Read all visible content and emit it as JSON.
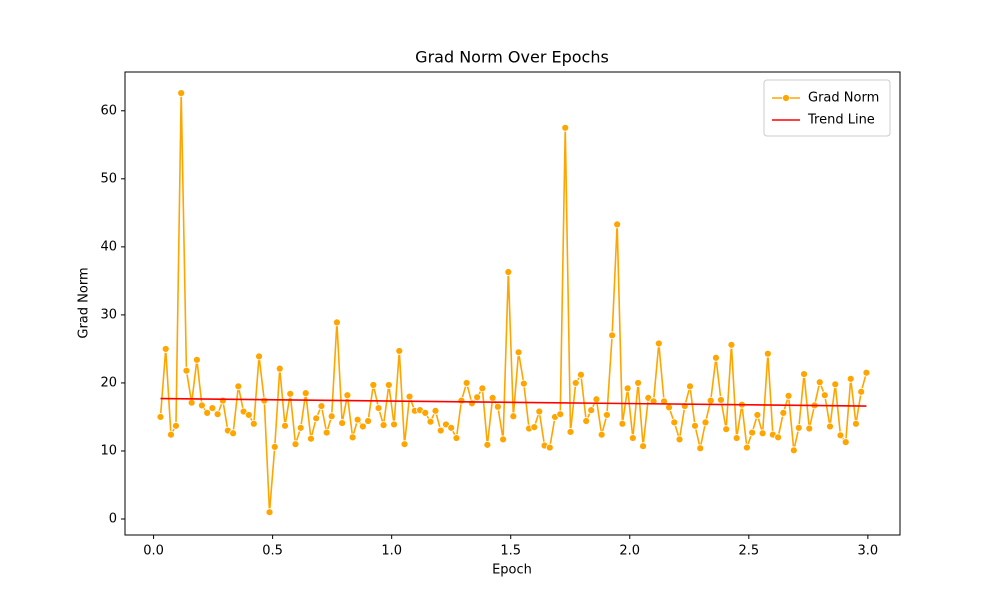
{
  "chart_data": {
    "type": "line",
    "title": "Grad Norm Over Epochs",
    "x_label": "Epoch",
    "y_label": "Grad Norm",
    "xlim": [
      -0.12,
      3.135
    ],
    "ylim": [
      -2.35,
      65.7
    ],
    "xticks": [
      {
        "value": 0,
        "label": "0.0"
      },
      0.5,
      {
        "value": 1,
        "label": "1.0"
      },
      1.5,
      {
        "value": 2,
        "label": "2.0"
      },
      2.5,
      {
        "value": 3,
        "label": "3.0"
      }
    ],
    "yticks": [
      0,
      10,
      20,
      30,
      40,
      50,
      60
    ],
    "grid": false,
    "legend": "upper right",
    "series": [
      {
        "name": "Grad Norm",
        "color": "#ffa500",
        "marker": true,
        "x": [
          0.029,
          0.051,
          0.073,
          0.094,
          0.116,
          0.138,
          0.16,
          0.182,
          0.203,
          0.225,
          0.247,
          0.269,
          0.291,
          0.312,
          0.334,
          0.356,
          0.378,
          0.4,
          0.421,
          0.443,
          0.465,
          0.487,
          0.509,
          0.53,
          0.552,
          0.574,
          0.596,
          0.618,
          0.639,
          0.661,
          0.683,
          0.705,
          0.727,
          0.748,
          0.77,
          0.792,
          0.814,
          0.836,
          0.857,
          0.879,
          0.901,
          0.923,
          0.945,
          0.966,
          0.988,
          1.01,
          1.032,
          1.054,
          1.075,
          1.097,
          1.119,
          1.141,
          1.163,
          1.184,
          1.206,
          1.228,
          1.25,
          1.272,
          1.293,
          1.315,
          1.337,
          1.359,
          1.381,
          1.402,
          1.424,
          1.446,
          1.468,
          1.49,
          1.511,
          1.533,
          1.555,
          1.577,
          1.599,
          1.62,
          1.642,
          1.664,
          1.686,
          1.708,
          1.729,
          1.751,
          1.773,
          1.795,
          1.817,
          1.838,
          1.86,
          1.882,
          1.904,
          1.926,
          1.947,
          1.969,
          1.991,
          2.013,
          2.035,
          2.056,
          2.078,
          2.1,
          2.122,
          2.144,
          2.165,
          2.187,
          2.209,
          2.231,
          2.253,
          2.274,
          2.296,
          2.318,
          2.34,
          2.362,
          2.383,
          2.405,
          2.427,
          2.449,
          2.471,
          2.492,
          2.514,
          2.536,
          2.558,
          2.58,
          2.601,
          2.623,
          2.645,
          2.667,
          2.689,
          2.71,
          2.732,
          2.754,
          2.776,
          2.798,
          2.819,
          2.841,
          2.863,
          2.885,
          2.907,
          2.928,
          2.95,
          2.972,
          2.994
        ],
        "values": [
          15.0,
          25.0,
          12.4,
          13.7,
          62.6,
          21.8,
          17.1,
          23.4,
          16.7,
          15.6,
          16.3,
          15.4,
          17.4,
          13.0,
          12.6,
          19.5,
          15.8,
          15.3,
          14.0,
          23.9,
          17.4,
          1.0,
          10.6,
          22.1,
          13.7,
          18.4,
          11.0,
          13.4,
          18.5,
          11.8,
          14.8,
          16.6,
          12.7,
          15.1,
          28.9,
          14.1,
          18.2,
          12.0,
          14.6,
          13.6,
          14.4,
          19.7,
          16.3,
          13.8,
          19.7,
          13.9,
          24.7,
          11.0,
          18.0,
          15.9,
          16.0,
          15.6,
          14.3,
          15.9,
          13.0,
          13.9,
          13.4,
          11.9,
          17.4,
          20.0,
          17.0,
          17.9,
          19.2,
          10.9,
          17.8,
          16.5,
          11.7,
          36.3,
          15.1,
          24.5,
          19.9,
          13.3,
          13.5,
          15.8,
          10.8,
          10.5,
          15.0,
          15.4,
          57.5,
          12.8,
          20.0,
          21.2,
          14.4,
          16.0,
          17.6,
          12.4,
          15.3,
          27.0,
          43.3,
          14.0,
          19.2,
          11.9,
          20.0,
          10.7,
          17.8,
          17.3,
          25.8,
          17.3,
          16.4,
          14.2,
          11.7,
          16.6,
          19.5,
          13.7,
          10.4,
          14.2,
          17.4,
          23.7,
          17.5,
          13.2,
          25.6,
          11.9,
          16.8,
          10.5,
          12.7,
          15.3,
          12.6,
          24.3,
          12.4,
          12.0,
          15.6,
          18.1,
          10.1,
          13.4,
          21.3,
          13.3,
          16.7,
          20.1,
          18.2,
          13.6,
          19.8,
          12.3,
          11.3,
          20.6,
          14.0,
          18.7,
          21.5
        ]
      },
      {
        "name": "Trend Line",
        "color": "#ff0000",
        "marker": false,
        "x": [
          0.029,
          2.994
        ],
        "values": [
          17.7,
          16.6
        ]
      }
    ]
  }
}
